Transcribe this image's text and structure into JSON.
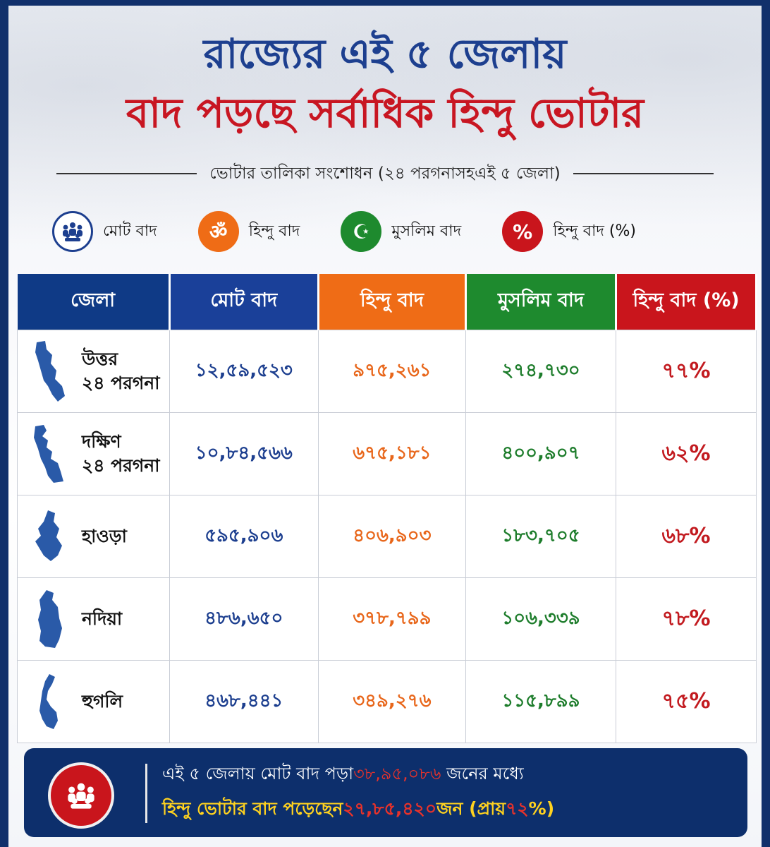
{
  "headline": {
    "line1": "রাজ্যের এই ৫ জেলায়",
    "line2": "বাদ পড়ছে সর্বাধিক হিন্দু ভোটার"
  },
  "subtitle": "ভোটার তালিকা সংশোধন (২৪ পরগনাসহএই ৫ জেলা)",
  "legend": [
    {
      "icon": "people-group-icon",
      "color": "#1d3f8f",
      "label": "মোট বাদ"
    },
    {
      "icon": "om-icon",
      "glyph": "ॐ",
      "color": "#ef6c16",
      "label": "হিন্দু বাদ"
    },
    {
      "icon": "crescent-star-icon",
      "glyph": "☪",
      "color": "#1e8a2e",
      "label": "মুসলিম বাদ"
    },
    {
      "icon": "percent-icon",
      "glyph": "%",
      "color": "#c9151c",
      "label": "হিন্দু বাদ (%)"
    }
  ],
  "table": {
    "headers": [
      "জেলা",
      "মোট বাদ",
      "হিন্দু বাদ",
      "মুসলিম বাদ",
      "হিন্দু বাদ (%)"
    ],
    "rows": [
      {
        "district_line1": "উত্তর",
        "district_line2": "২৪ পরগনা",
        "total": "১২,৫৯,৫২৩",
        "hindu": "৯৭৫,২৬১",
        "muslim": "২৭৪,৭৩০",
        "pct": "৭৭%"
      },
      {
        "district_line1": "দক্ষিণ",
        "district_line2": "২৪ পরগনা",
        "total": "১০,৮৪,৫৬৬",
        "hindu": "৬৭৫,১৮১",
        "muslim": "৪০০,৯০৭",
        "pct": "৬২%"
      },
      {
        "district_line1": "হাওড়া",
        "district_line2": "",
        "total": "৫৯৫,৯০৬",
        "hindu": "৪০৬,৯০৩",
        "muslim": "১৮৩,৭০৫",
        "pct": "৬৮%"
      },
      {
        "district_line1": "নদিয়া",
        "district_line2": "",
        "total": "৪৮৬,৬৫০",
        "hindu": "৩৭৮,৭৯৯",
        "muslim": "১০৬,৩৩৯",
        "pct": "৭৮%"
      },
      {
        "district_line1": "হুগলি",
        "district_line2": "",
        "total": "৪৬৮,৪৪১",
        "hindu": "৩৪৯,২৭৬",
        "muslim": "১১৫,৮৯৯",
        "pct": "৭৫%"
      }
    ]
  },
  "footer": {
    "icon": "people-group-icon",
    "line1_pre": "এই ৫ জেলায় মোট বাদ পড়া",
    "line1_num": "৩৮,৯৫,০৮৬",
    "line1_post": "জনের মধ্যে",
    "line2_pre": "হিন্দু ভোটার বাদ পড়েছেন",
    "line2_num": "২৭,৮৫,৪২০",
    "line2_mid": "জন (প্রায়",
    "line2_pct": "৭২",
    "line2_post": "%)"
  }
}
